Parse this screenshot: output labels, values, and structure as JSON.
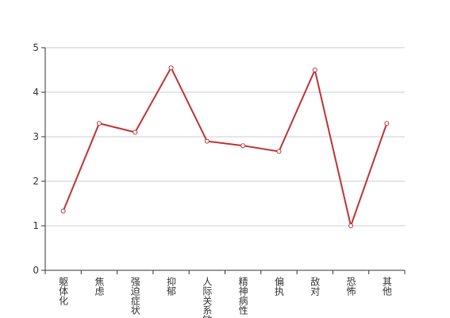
{
  "chart_data": {
    "type": "line",
    "categories": [
      "躯体化",
      "焦虑",
      "强迫症状",
      "抑郁",
      "人际关系敏感",
      "精神病性",
      "偏执",
      "敌对",
      "恐怖",
      "其他"
    ],
    "series": [
      {
        "color": "#c03233",
        "values": [
          1.33,
          3.3,
          3.1,
          4.55,
          2.9,
          2.8,
          2.67,
          4.5,
          1.0,
          3.3
        ]
      }
    ],
    "ylim": [
      0,
      5
    ],
    "yticks": [
      0,
      1,
      2,
      3,
      4,
      5
    ],
    "grid": true
  }
}
